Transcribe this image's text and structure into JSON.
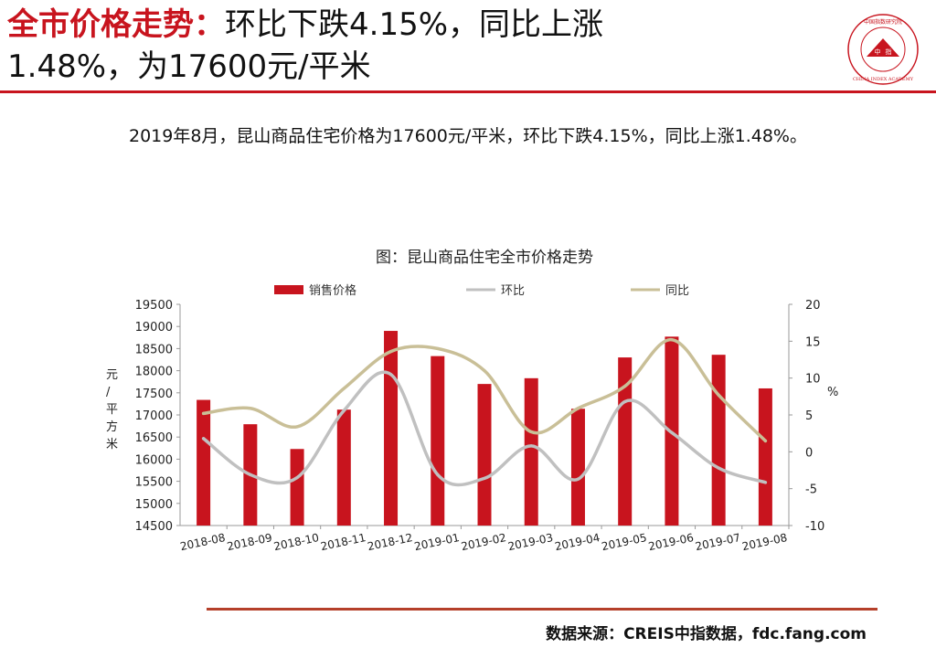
{
  "header": {
    "title_highlight": "全市价格走势：",
    "title_rest_1": "环比下跌4.15%，同比上涨",
    "title_rest_2": "1.48%，为17600元/平米"
  },
  "logo": {
    "text_cn": "中国指数研究院",
    "center_a": "中",
    "center_b": "指",
    "text_en": "CHINA INDEX ACADEMY"
  },
  "summary": "2019年8月，昆山商品住宅价格为17600元/平米，环比下跌4.15%，同比上涨1.48%。",
  "footer": {
    "source": "数据来源：CREIS中指数据，fdc.fang.com"
  },
  "colors": {
    "accent": "#c8141e",
    "bar": "#c8141e",
    "mom": "#c0c0c0",
    "yoy": "#c9bf97"
  },
  "chart_data": {
    "type": "bar",
    "title": "图：昆山商品住宅全市价格走势",
    "categories": [
      "2018-08",
      "2018-09",
      "2018-10",
      "2018-11",
      "2018-12",
      "2019-01",
      "2019-02",
      "2019-03",
      "2019-04",
      "2019-05",
      "2019-06",
      "2019-07",
      "2019-08"
    ],
    "series": [
      {
        "name": "销售价格",
        "type": "bar",
        "axis": "left",
        "values": [
          17340,
          16790,
          16230,
          17120,
          18900,
          18330,
          17700,
          17830,
          17140,
          18300,
          18770,
          18360,
          17600
        ]
      },
      {
        "name": "环比",
        "type": "line",
        "axis": "right",
        "values": [
          1.8,
          -3.1,
          -3.5,
          5.6,
          10.5,
          -3.1,
          -3.6,
          0.8,
          -3.7,
          6.8,
          2.6,
          -2.2,
          -4.15
        ]
      },
      {
        "name": "同比",
        "type": "line",
        "axis": "right",
        "values": [
          5.2,
          5.9,
          3.4,
          8.6,
          13.6,
          14.0,
          11.0,
          2.7,
          5.9,
          8.9,
          15.2,
          7.7,
          1.48
        ]
      }
    ],
    "ylabel": "元/平方米",
    "y2label": "%",
    "ylim": [
      14500,
      19500
    ],
    "y2lim": [
      -10,
      20
    ],
    "yticks": [
      "14500",
      "15000",
      "15500",
      "16000",
      "16500",
      "17000",
      "17500",
      "18000",
      "18500",
      "19000",
      "19500"
    ],
    "y2ticks": [
      "-10",
      "-5",
      "0",
      "5",
      "10",
      "15",
      "20"
    ],
    "legend": "top",
    "grid": false
  }
}
